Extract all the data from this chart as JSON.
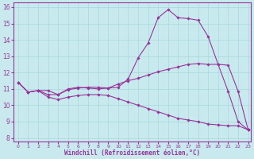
{
  "xlabel": "Windchill (Refroidissement éolien,°C)",
  "bg_color": "#c8eaee",
  "line_color": "#993399",
  "grid_color": "#a8d8dc",
  "xlim_min": -0.5,
  "xlim_max": 23.3,
  "ylim_min": 7.8,
  "ylim_max": 16.3,
  "xticks": [
    0,
    1,
    2,
    3,
    4,
    5,
    6,
    7,
    8,
    9,
    10,
    11,
    12,
    13,
    14,
    15,
    16,
    17,
    18,
    19,
    20,
    21,
    22,
    23
  ],
  "yticks": [
    8,
    9,
    10,
    11,
    12,
    13,
    14,
    15,
    16
  ],
  "line1_x": [
    0,
    1,
    2,
    3,
    4,
    5,
    6,
    7,
    8,
    9,
    10,
    11,
    12,
    13,
    14,
    15,
    16,
    17,
    18,
    19,
    20,
    21,
    22,
    23
  ],
  "line1_y": [
    11.4,
    10.8,
    10.9,
    10.9,
    10.65,
    11.0,
    11.1,
    11.05,
    11.0,
    11.05,
    11.1,
    11.6,
    12.9,
    13.8,
    15.35,
    15.85,
    15.35,
    15.3,
    15.2,
    14.2,
    12.5,
    10.85,
    9.0,
    8.5
  ],
  "line2_x": [
    0,
    1,
    2,
    3,
    4,
    5,
    6,
    7,
    8,
    9,
    10,
    11,
    12,
    13,
    14,
    15,
    16,
    17,
    18,
    19,
    20,
    21,
    22,
    23
  ],
  "line2_y": [
    11.4,
    10.8,
    10.9,
    10.65,
    10.65,
    10.95,
    11.05,
    11.1,
    11.1,
    11.05,
    11.3,
    11.5,
    11.65,
    11.85,
    12.05,
    12.2,
    12.35,
    12.5,
    12.55,
    12.5,
    12.5,
    12.45,
    10.85,
    8.5
  ],
  "line3_x": [
    0,
    1,
    2,
    3,
    4,
    5,
    6,
    7,
    8,
    9,
    10,
    11,
    12,
    13,
    14,
    15,
    16,
    17,
    18,
    19,
    20,
    21,
    22,
    23
  ],
  "line3_y": [
    11.4,
    10.8,
    10.9,
    10.5,
    10.35,
    10.5,
    10.6,
    10.65,
    10.65,
    10.6,
    10.4,
    10.2,
    10.0,
    9.8,
    9.6,
    9.4,
    9.2,
    9.1,
    9.0,
    8.85,
    8.8,
    8.75,
    8.75,
    8.5
  ]
}
